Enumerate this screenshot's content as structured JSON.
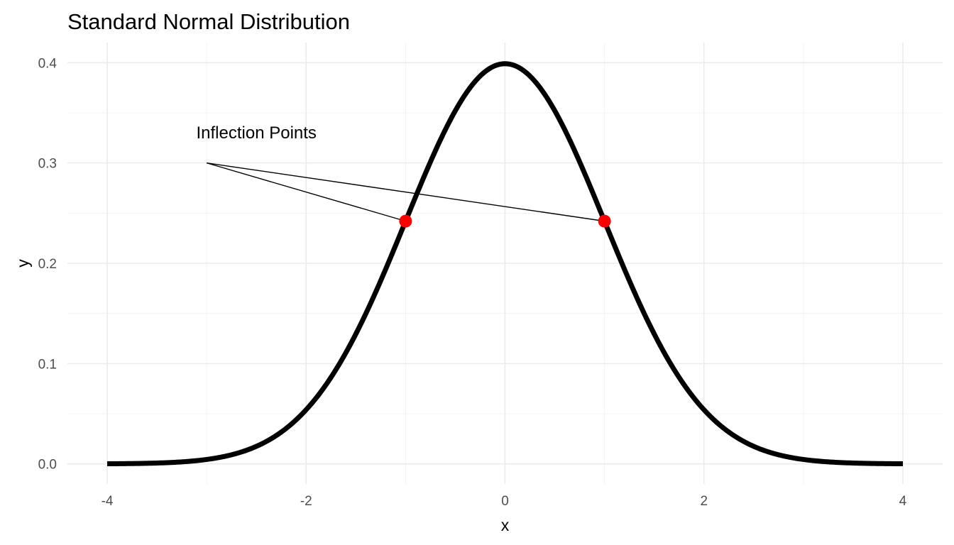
{
  "chart_data": {
    "type": "line",
    "title": "Standard Normal Distribution",
    "xlabel": "x",
    "ylabel": "y",
    "xlim": [
      -4,
      4
    ],
    "ylim": [
      0,
      0.4
    ],
    "x_ticks": [
      -4,
      -2,
      0,
      2,
      4
    ],
    "x_tick_labels": [
      "-4",
      "-2",
      "0",
      "2",
      "4"
    ],
    "y_ticks": [
      0.0,
      0.1,
      0.2,
      0.3,
      0.4
    ],
    "y_tick_labels": [
      "0.0",
      "0.1",
      "0.2",
      "0.3",
      "0.4"
    ],
    "grid": true,
    "curve": {
      "function": "standard normal density",
      "mean": 0,
      "sd": 1,
      "color": "#000000",
      "x_from": -4,
      "x_to": 4
    },
    "points": {
      "color": "#ff0000",
      "x": [
        -1,
        1
      ],
      "y": [
        0.242,
        0.242
      ]
    },
    "annotation": {
      "text": "Inflection Points",
      "text_x": -2.5,
      "text_y": 0.33,
      "line_from": [
        -3,
        0.3
      ],
      "line_to": [
        [
          -1,
          0.242
        ],
        [
          1,
          0.242
        ]
      ]
    }
  }
}
